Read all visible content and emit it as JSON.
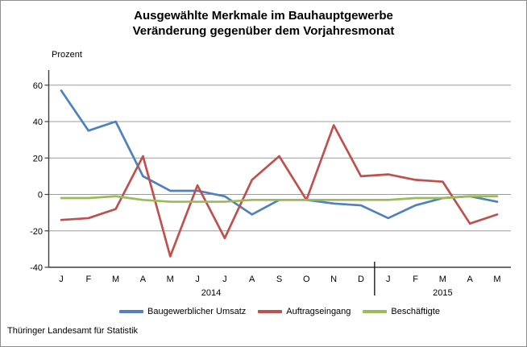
{
  "chart": {
    "title": "Ausgewählte Merkmale im Bauhauptgewerbe",
    "subtitle": "Veränderung gegenüber dem Vorjahresmonat",
    "unit_label": "Prozent"
  },
  "footer": {
    "source": "Thüringer Landesamt für Statistik"
  },
  "chart_data": {
    "type": "line",
    "title": "Ausgewählte Merkmale im Bauhauptgewerbe",
    "subtitle": "Veränderung gegenüber dem Vorjahresmonat",
    "ylabel": "Prozent",
    "xlabel": "",
    "grid": true,
    "legend_position": "bottom",
    "ylim": [
      -40,
      60
    ],
    "yticks": [
      60,
      40,
      20,
      0,
      -20,
      -40
    ],
    "categories": [
      "J",
      "F",
      "M",
      "A",
      "M",
      "J",
      "J",
      "A",
      "S",
      "O",
      "N",
      "D",
      "J",
      "F",
      "M",
      "A",
      "M"
    ],
    "year_groups": [
      {
        "label": "2014",
        "start_index": 0,
        "end_index": 11
      },
      {
        "label": "2015",
        "start_index": 12,
        "end_index": 16
      }
    ],
    "separator_after_index": 11,
    "series": [
      {
        "name": "Baugewerblicher Umsatz",
        "color": "#4F81BD",
        "values": [
          57,
          35,
          40,
          10,
          2,
          2,
          -1,
          -11,
          -3,
          -3,
          -5,
          -6,
          -13,
          -6,
          -2,
          -1,
          -4
        ]
      },
      {
        "name": "Auftragseingang",
        "color": "#C0504D",
        "values": [
          -14,
          -13,
          -8,
          21,
          -34,
          5,
          -24,
          8,
          21,
          -3,
          38,
          10,
          11,
          8,
          7,
          -16,
          -11
        ]
      },
      {
        "name": "Beschäftigte",
        "color": "#9BBB59",
        "values": [
          -2,
          -2,
          -1,
          -3,
          -4,
          -4,
          -4,
          -3,
          -3,
          -3,
          -3,
          -3,
          -3,
          -2,
          -2,
          -1,
          -1
        ]
      }
    ],
    "axis_color": "#3f3f3f",
    "grid_color": "#9c9c9c",
    "separator_color": "#1a1a1a"
  }
}
